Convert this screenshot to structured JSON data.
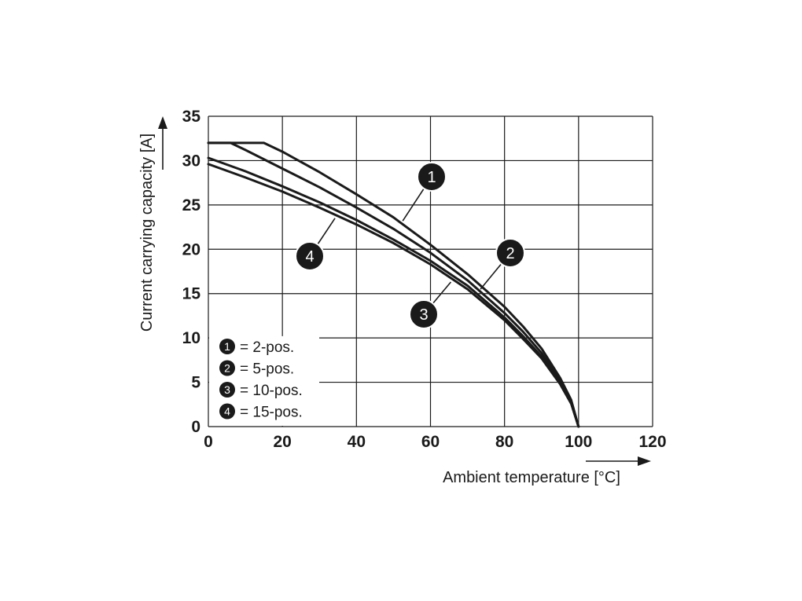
{
  "chart_data": {
    "type": "line",
    "title": "",
    "xlabel": "Ambient temperature [°C]",
    "ylabel": "Current carrying capacity [A]",
    "xlim": [
      0,
      120
    ],
    "ylim": [
      0,
      35
    ],
    "xticks": [
      0,
      20,
      40,
      60,
      80,
      100,
      120
    ],
    "yticks": [
      0,
      5,
      10,
      15,
      20,
      25,
      30,
      35
    ],
    "grid": true,
    "legend_position": "bottom-left",
    "series": [
      {
        "name": "2-pos.",
        "marker": "1",
        "x": [
          0,
          15,
          20,
          30,
          40,
          50,
          60,
          70,
          80,
          85,
          90,
          95,
          98,
          100
        ],
        "y": [
          32,
          32,
          31,
          28.7,
          26.2,
          23.6,
          20.5,
          17.2,
          13.5,
          11.3,
          8.8,
          5.5,
          3,
          0
        ]
      },
      {
        "name": "5-pos.",
        "marker": "2",
        "x": [
          0,
          6,
          10,
          20,
          30,
          40,
          50,
          60,
          70,
          80,
          85,
          90,
          95,
          98,
          100
        ],
        "y": [
          32,
          32,
          31.2,
          29.1,
          27,
          24.7,
          22.3,
          19.6,
          16.5,
          12.8,
          10.7,
          8.3,
          5.2,
          2.8,
          0
        ]
      },
      {
        "name": "10-pos.",
        "marker": "3",
        "x": [
          0,
          10,
          20,
          30,
          40,
          50,
          60,
          70,
          80,
          85,
          90,
          95,
          98,
          100
        ],
        "y": [
          30.3,
          28.8,
          27.1,
          25.3,
          23.3,
          21.1,
          18.7,
          15.9,
          12.3,
          10.2,
          7.9,
          5,
          2.7,
          0
        ]
      },
      {
        "name": "15-pos.",
        "marker": "4",
        "x": [
          0,
          10,
          20,
          30,
          40,
          50,
          60,
          70,
          80,
          85,
          90,
          95,
          98,
          100
        ],
        "y": [
          29.6,
          28.1,
          26.5,
          24.7,
          22.8,
          20.7,
          18.3,
          15.5,
          12,
          9.9,
          7.7,
          4.8,
          2.6,
          0
        ]
      }
    ],
    "legend": [
      {
        "marker": "1",
        "label": "= 2-pos."
      },
      {
        "marker": "2",
        "label": "= 5-pos."
      },
      {
        "marker": "3",
        "label": "= 10-pos."
      },
      {
        "marker": "4",
        "label": "= 15-pos."
      }
    ],
    "colors": {
      "line": "#1a1a1a",
      "grid": "#1a1a1a",
      "badge": "#1a1a1a"
    }
  }
}
